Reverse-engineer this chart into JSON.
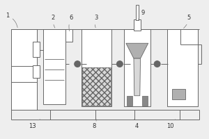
{
  "bg": "#eeeeee",
  "lc": "#666666",
  "lw": 0.7,
  "white": "#ffffff",
  "gray_light": "#d8d8d8",
  "gray_med": "#b0b0b0",
  "gray_dark": "#888888"
}
